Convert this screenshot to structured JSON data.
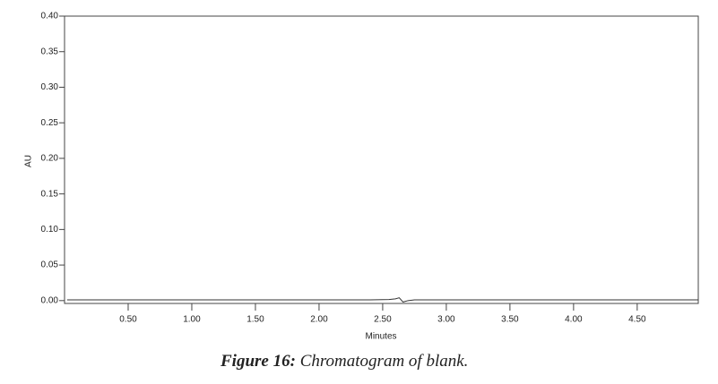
{
  "chart_data": {
    "type": "line",
    "x_label": "Minutes",
    "y_label": "AU",
    "figure_label": "Figure 16:",
    "caption": "Chromatogram of blank.",
    "x": [
      0.02,
      0.5,
      1.0,
      1.5,
      2.0,
      2.4,
      2.55,
      2.6,
      2.63,
      2.66,
      2.7,
      2.75,
      2.9,
      3.0,
      3.5,
      4.0,
      4.5,
      4.98
    ],
    "series": [
      {
        "name": "blank",
        "color": "#333333",
        "values": [
          0.001,
          0.001,
          0.001,
          0.001,
          0.001,
          0.001,
          0.0015,
          0.0025,
          0.004,
          -0.002,
          0.0,
          0.001,
          0.001,
          0.001,
          0.001,
          0.001,
          0.001,
          0.001
        ]
      }
    ],
    "xlim": [
      0,
      4.98
    ],
    "ylim": [
      -0.004,
      0.4
    ],
    "xticks": [
      {
        "value": 0.5,
        "label": "0.50"
      },
      {
        "value": 1.0,
        "label": "1.00"
      },
      {
        "value": 1.5,
        "label": "1.50"
      },
      {
        "value": 2.0,
        "label": "2.00"
      },
      {
        "value": 2.5,
        "label": "2.50"
      },
      {
        "value": 3.0,
        "label": "3.00"
      },
      {
        "value": 3.5,
        "label": "3.50"
      },
      {
        "value": 4.0,
        "label": "4.00"
      },
      {
        "value": 4.5,
        "label": "4.50"
      }
    ],
    "yticks": [
      {
        "value": 0,
        "label": "0.00"
      },
      {
        "value": 0.05,
        "label": "0.05"
      },
      {
        "value": 0.1,
        "label": "0.10"
      },
      {
        "value": 0.15,
        "label": "0.15"
      },
      {
        "value": 0.2,
        "label": "0.20"
      },
      {
        "value": 0.25,
        "label": "0.25"
      },
      {
        "value": 0.3,
        "label": "0.30"
      },
      {
        "value": 0.35,
        "label": "0.35"
      },
      {
        "value": 0.4,
        "label": "0.40"
      }
    ],
    "grid": false
  }
}
